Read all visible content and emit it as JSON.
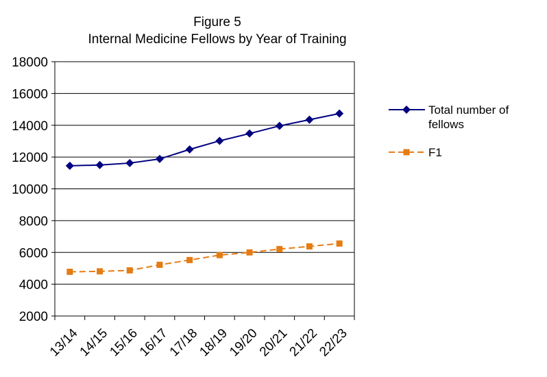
{
  "chart_data": {
    "type": "line",
    "title": "Figure 5",
    "subtitle": "Internal Medicine Fellows by Year of Training",
    "categories": [
      "13/14",
      "14/15",
      "15/16",
      "16/17",
      "17/18",
      "18/19",
      "19/20",
      "20/21",
      "21/22",
      "22/23"
    ],
    "ylim": [
      2000,
      18000
    ],
    "yticks": [
      2000,
      4000,
      6000,
      8000,
      10000,
      12000,
      14000,
      16000,
      18000
    ],
    "grid": true,
    "legend": "right",
    "series": [
      {
        "name": "Total number of fellows",
        "name_lines": [
          "Total number of",
          "fellows"
        ],
        "color": "#000080",
        "marker": "diamond",
        "dash": "solid",
        "values": [
          11450,
          11500,
          11620,
          11880,
          12480,
          13020,
          13480,
          13960,
          14350,
          14740
        ]
      },
      {
        "name": "F1",
        "name_lines": [
          "F1"
        ],
        "color": "#E57C13",
        "marker": "square",
        "dash": "dashed",
        "values": [
          4780,
          4810,
          4870,
          5220,
          5520,
          5830,
          6000,
          6210,
          6380,
          6560
        ]
      }
    ]
  }
}
